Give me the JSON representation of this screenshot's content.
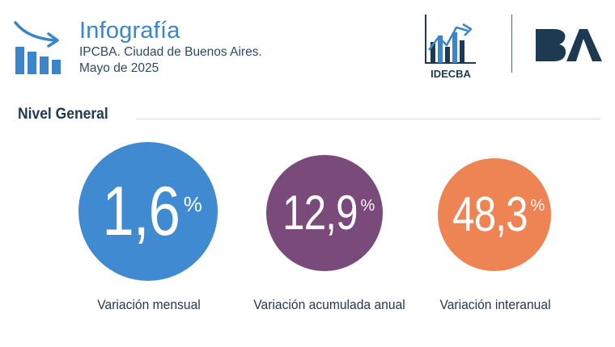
{
  "header": {
    "title": "Infografía",
    "subtitle_line1": "IPCBA. Ciudad de Buenos Aires.",
    "subtitle_line2": "Mayo de 2025",
    "icon": "bar-chart-trend-down-icon"
  },
  "logos": {
    "idec_text": "IDECBA",
    "ba_text": "BA"
  },
  "section": {
    "title": "Nivel General"
  },
  "indicators": [
    {
      "value": "1,6",
      "unit": "%",
      "label": "Variación mensual",
      "color": "#3f8ad0"
    },
    {
      "value": "12,9",
      "unit": "%",
      "label": "Variación acumulada anual",
      "color": "#7a4b7a"
    },
    {
      "value": "48,3",
      "unit": "%",
      "label": "Variación interanual",
      "color": "#ee8453"
    }
  ],
  "colors": {
    "accent_blue": "#3a86c8",
    "dark_navy": "#1f3852",
    "ba_logo": "#1e3a52"
  }
}
